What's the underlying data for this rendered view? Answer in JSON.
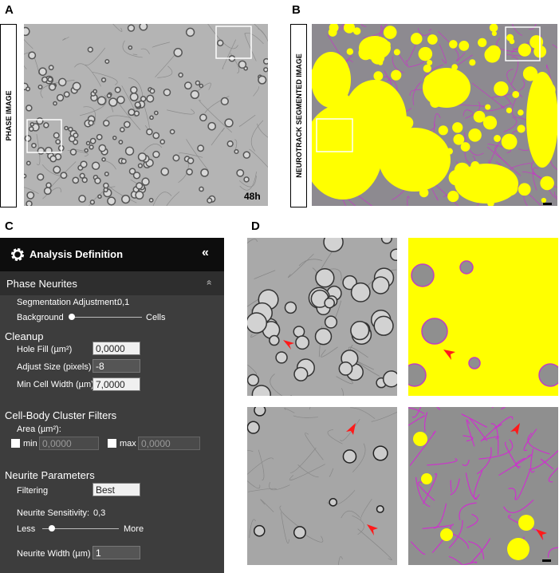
{
  "panels": {
    "a": {
      "label": "A",
      "side_label": "PHASE IMAGE",
      "timepoint": "48h"
    },
    "b": {
      "label": "B",
      "side_label": "NEUROTRACK SEGMENTED IMAGE"
    },
    "c": {
      "label": "C"
    },
    "d": {
      "label": "D"
    }
  },
  "analysis_panel": {
    "title": "Analysis Definition",
    "collapse": "«",
    "section": "Phase Neurites",
    "section_toggle": "»",
    "segmentation": {
      "label": "Segmentation Adjustment:",
      "value": "0,1",
      "left": "Background",
      "right": "Cells"
    },
    "cleanup": {
      "heading": "Cleanup",
      "fields": [
        {
          "label": "Hole Fill (µm²)",
          "value": "0,0000"
        },
        {
          "label": "Adjust Size (pixels)",
          "value": "-8"
        },
        {
          "label": "Min Cell Width (µm)",
          "value": "7,0000"
        }
      ]
    },
    "cluster_filters": {
      "heading": "Cell-Body Cluster Filters",
      "area_label": "Area (µm²):",
      "min_label": "min",
      "min_value": "0,0000",
      "max_label": "max",
      "max_value": "0,0000"
    },
    "neurite": {
      "heading": "Neurite Parameters",
      "filtering_label": "Filtering",
      "filtering_value": "Best",
      "sensitivity_label": "Neurite Sensitivity:",
      "sensitivity_value": "0,3",
      "left": "Less",
      "right": "More",
      "width_label": "Neurite Width (µm)",
      "width_value": "1"
    }
  }
}
